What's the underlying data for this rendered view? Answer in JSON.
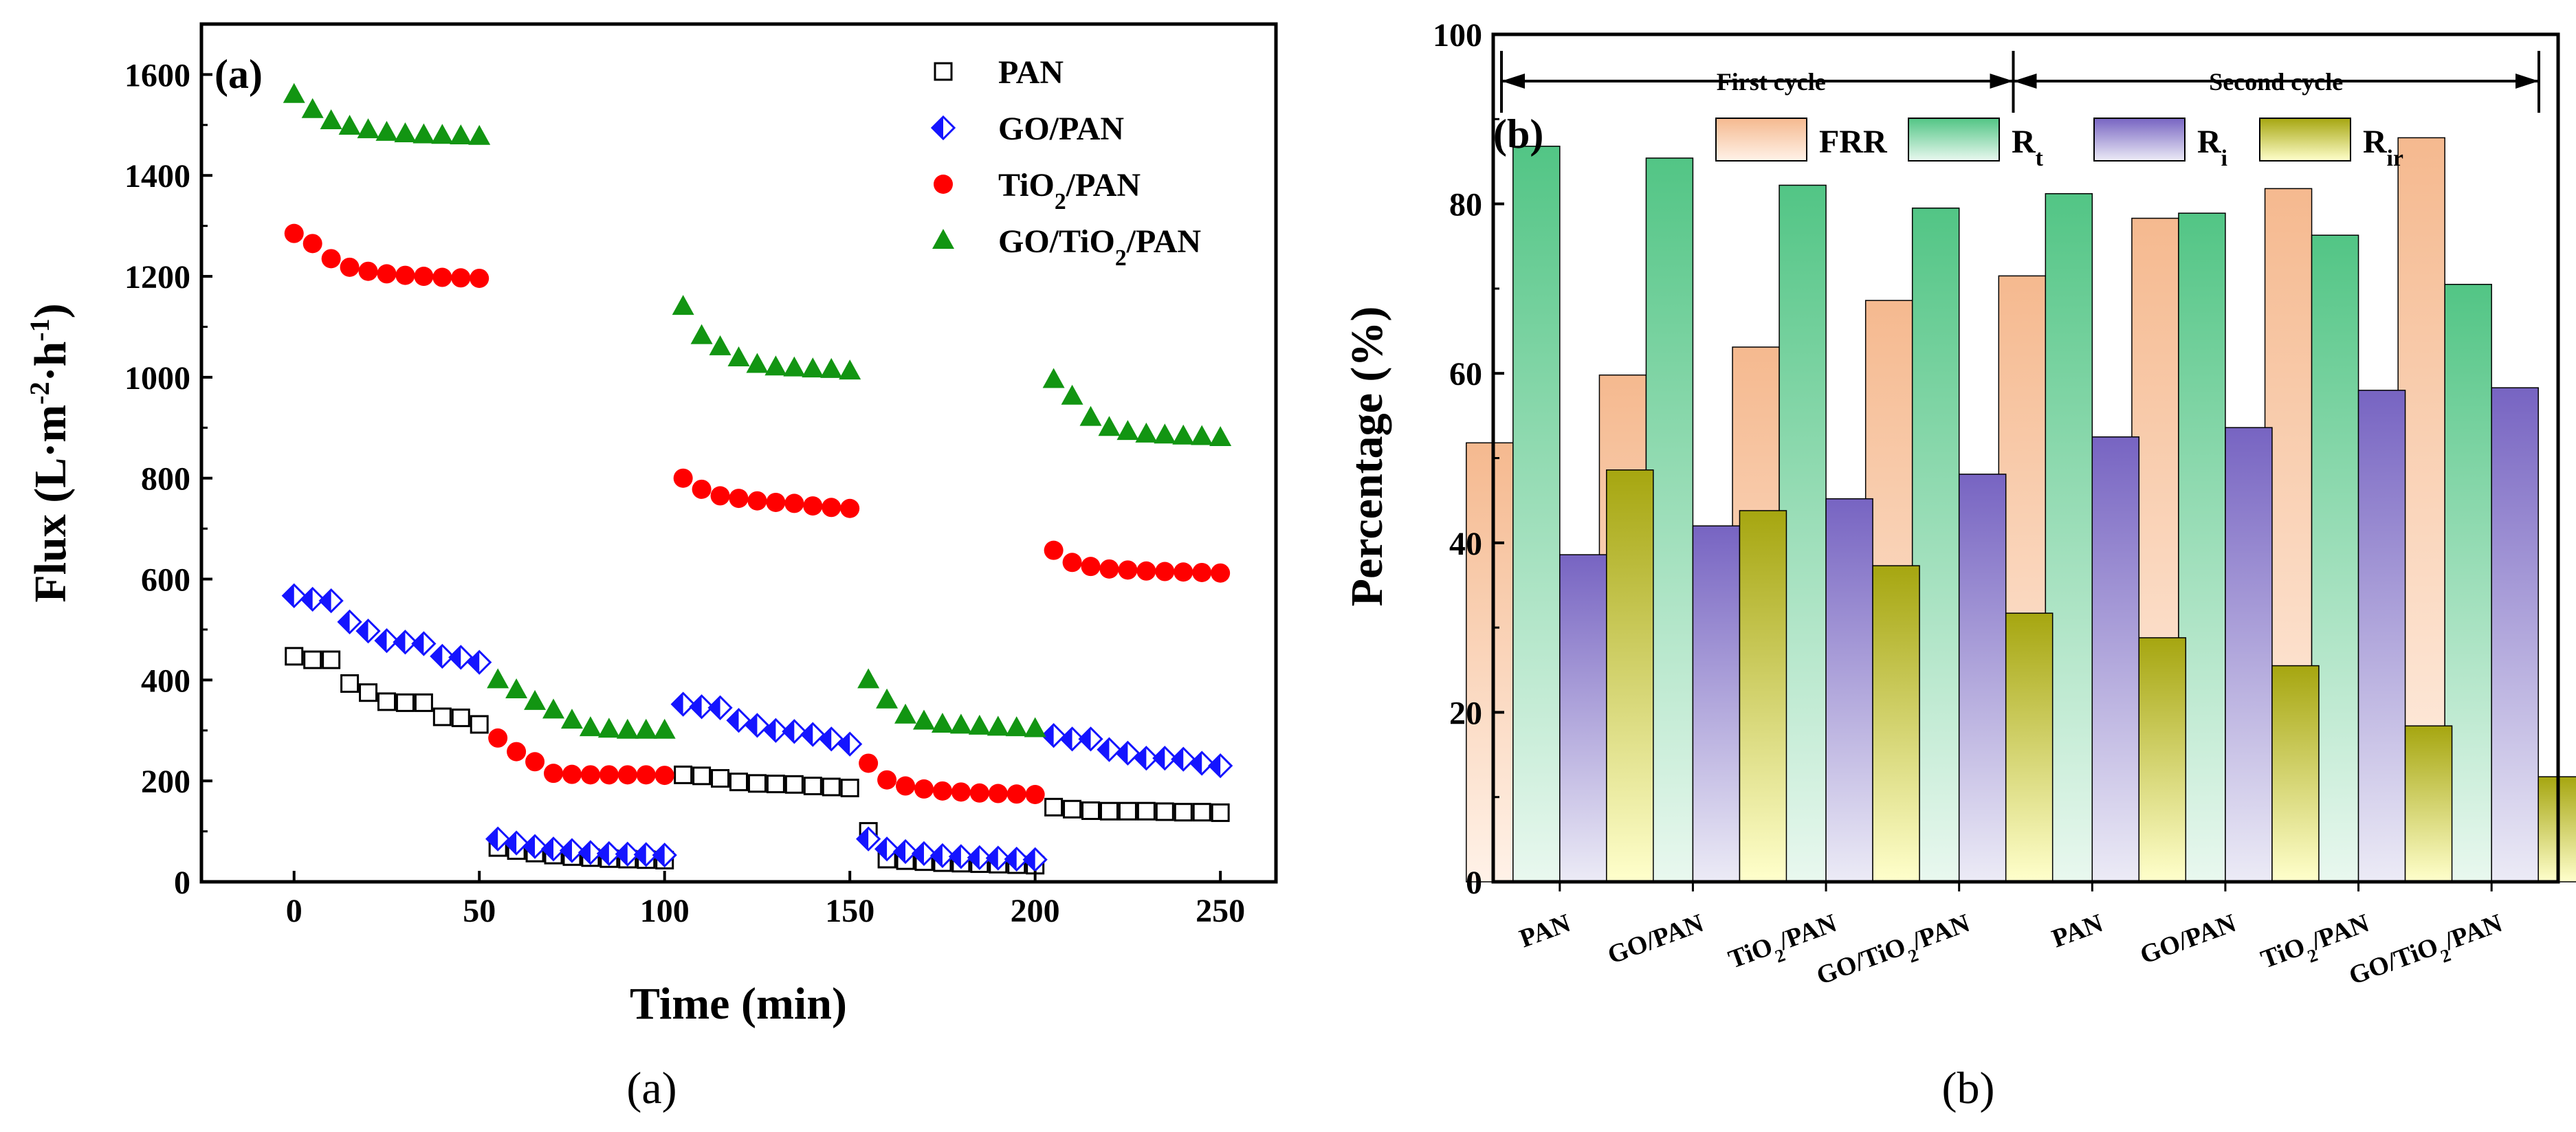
{
  "chart_data": [
    {
      "type": "scatter",
      "panel_label": "(a)",
      "caption": "(a)",
      "xlabel": "Time (min)",
      "ylabel": "Flux (L·m-2·h-1)",
      "xlim": [
        -25,
        265
      ],
      "ylim": [
        0,
        1700
      ],
      "xticks": [
        0,
        50,
        100,
        150,
        200,
        250
      ],
      "yticks": [
        0,
        200,
        400,
        600,
        800,
        1000,
        1200,
        1400,
        1600
      ],
      "legend_position": "top-right",
      "series": [
        {
          "name": "PAN",
          "marker": "square-open",
          "color": "#000000",
          "segments": [
            {
              "x": [
                0,
                5,
                10,
                15,
                20,
                25,
                30,
                35,
                40,
                45,
                50
              ],
              "y": [
                447,
                440,
                440,
                393,
                375,
                357,
                355,
                355,
                327,
                325,
                312
              ]
            },
            {
              "x": [
                55,
                60,
                65,
                70,
                75,
                80,
                85,
                90,
                95,
                100
              ],
              "y": [
                68,
                62,
                57,
                53,
                50,
                48,
                46,
                45,
                44,
                43
              ]
            },
            {
              "x": [
                105,
                110,
                115,
                120,
                125,
                130,
                135,
                140,
                145,
                150
              ],
              "y": [
                212,
                210,
                205,
                198,
                195,
                194,
                193,
                190,
                188,
                186
              ]
            },
            {
              "x": [
                155,
                160,
                165,
                170,
                175,
                180,
                185,
                190,
                195,
                200
              ],
              "y": [
                100,
                45,
                42,
                40,
                38,
                37,
                36,
                35,
                34,
                33
              ]
            },
            {
              "x": [
                205,
                210,
                215,
                220,
                225,
                230,
                235,
                240,
                245,
                250
              ],
              "y": [
                148,
                144,
                141,
                140,
                140,
                140,
                139,
                138,
                138,
                137
              ]
            }
          ]
        },
        {
          "name": "GO/PAN",
          "marker": "diamond-half",
          "color": "#1414ff",
          "segments": [
            {
              "x": [
                0,
                5,
                10,
                15,
                20,
                25,
                30,
                35,
                40,
                45,
                50
              ],
              "y": [
                567,
                560,
                557,
                515,
                497,
                478,
                475,
                472,
                447,
                445,
                435
              ]
            },
            {
              "x": [
                55,
                60,
                65,
                70,
                75,
                80,
                85,
                90,
                95,
                100
              ],
              "y": [
                85,
                77,
                70,
                65,
                62,
                58,
                56,
                55,
                54,
                53
              ]
            },
            {
              "x": [
                105,
                110,
                115,
                120,
                125,
                130,
                135,
                140,
                145,
                150
              ],
              "y": [
                352,
                347,
                345,
                320,
                310,
                300,
                298,
                292,
                283,
                273
              ]
            },
            {
              "x": [
                155,
                160,
                165,
                170,
                175,
                180,
                185,
                190,
                195,
                200
              ],
              "y": [
                85,
                65,
                60,
                56,
                52,
                50,
                48,
                47,
                45,
                44
              ]
            },
            {
              "x": [
                205,
                210,
                215,
                220,
                225,
                230,
                235,
                240,
                245,
                250
              ],
              "y": [
                290,
                283,
                283,
                262,
                255,
                245,
                245,
                243,
                235,
                230
              ]
            }
          ]
        },
        {
          "name": "TiO2/PAN",
          "marker": "circle",
          "color": "#ff0000",
          "segments": [
            {
              "x": [
                0,
                5,
                10,
                15,
                20,
                25,
                30,
                35,
                40,
                45,
                50
              ],
              "y": [
                1285,
                1265,
                1235,
                1218,
                1210,
                1205,
                1202,
                1200,
                1198,
                1197,
                1196
              ]
            },
            {
              "x": [
                55,
                60,
                65,
                70,
                75,
                80,
                85,
                90,
                95,
                100
              ],
              "y": [
                285,
                258,
                238,
                215,
                213,
                212,
                212,
                212,
                212,
                211
              ]
            },
            {
              "x": [
                105,
                110,
                115,
                120,
                125,
                130,
                135,
                140,
                145,
                150
              ],
              "y": [
                800,
                778,
                765,
                760,
                755,
                752,
                750,
                745,
                742,
                740
              ]
            },
            {
              "x": [
                155,
                160,
                165,
                170,
                175,
                180,
                185,
                190,
                195,
                200
              ],
              "y": [
                235,
                202,
                190,
                184,
                180,
                178,
                176,
                175,
                174,
                173
              ]
            },
            {
              "x": [
                205,
                210,
                215,
                220,
                225,
                230,
                235,
                240,
                245,
                250
              ],
              "y": [
                657,
                633,
                625,
                620,
                618,
                616,
                615,
                614,
                613,
                612
              ]
            }
          ]
        },
        {
          "name": "GO/TiO2/PAN",
          "marker": "triangle",
          "color": "#129512",
          "segments": [
            {
              "x": [
                0,
                5,
                10,
                15,
                20,
                25,
                30,
                35,
                40,
                45,
                50
              ],
              "y": [
                1560,
                1530,
                1508,
                1497,
                1490,
                1485,
                1482,
                1480,
                1479,
                1478,
                1477
              ]
            },
            {
              "x": [
                55,
                60,
                65,
                70,
                75,
                80,
                85,
                90,
                95,
                100
              ],
              "y": [
                400,
                380,
                357,
                340,
                320,
                305,
                302,
                300,
                300,
                300
              ]
            },
            {
              "x": [
                105,
                110,
                115,
                120,
                125,
                130,
                135,
                140,
                145,
                150
              ],
              "y": [
                1140,
                1082,
                1060,
                1038,
                1025,
                1020,
                1018,
                1016,
                1015,
                1012
              ]
            },
            {
              "x": [
                155,
                160,
                165,
                170,
                175,
                180,
                185,
                190,
                195,
                200
              ],
              "y": [
                400,
                360,
                330,
                318,
                312,
                310,
                308,
                306,
                305,
                303
              ]
            },
            {
              "x": [
                205,
                210,
                215,
                220,
                225,
                230,
                235,
                240,
                245,
                250
              ],
              "y": [
                995,
                962,
                920,
                900,
                892,
                887,
                885,
                883,
                882,
                880
              ]
            }
          ]
        }
      ]
    },
    {
      "type": "bar",
      "panel_label": "(b)",
      "caption": "(b)",
      "xlabel": "",
      "ylabel": "Percentage (%)",
      "ylim": [
        0,
        100
      ],
      "yticks": [
        0,
        20,
        40,
        60,
        80,
        100
      ],
      "categories": [
        "PAN",
        "GO/PAN",
        "TiO2/PAN",
        "GO/TiO2/PAN",
        "PAN",
        "GO/PAN",
        "TiO2/PAN",
        "GO/TiO2/PAN"
      ],
      "cycles": [
        {
          "label": "First cycle",
          "categories": [
            0,
            3
          ]
        },
        {
          "label": "Second cycle",
          "categories": [
            4,
            7
          ]
        }
      ],
      "legend_position": "top",
      "series": [
        {
          "name": "FRR",
          "color_top": "#f5b98f",
          "color_bottom": "#fff2e8",
          "values": [
            51.8,
            59.8,
            63.1,
            68.6,
            71.5,
            78.3,
            81.8,
            87.8
          ]
        },
        {
          "name": "Rt",
          "color_top": "#52c585",
          "color_bottom": "#e9f8ef",
          "values": [
            86.8,
            85.4,
            82.2,
            79.5,
            81.2,
            78.9,
            76.3,
            70.5
          ]
        },
        {
          "name": "Ri",
          "color_top": "#7764c2",
          "color_bottom": "#ecebf6",
          "values": [
            38.6,
            42.0,
            45.2,
            48.1,
            52.5,
            53.6,
            58.0,
            58.3
          ]
        },
        {
          "name": "Rir",
          "color_top": "#a6a610",
          "color_bottom": "#ffffcc",
          "values": [
            48.6,
            43.8,
            37.3,
            31.7,
            28.8,
            25.5,
            18.4,
            12.4
          ]
        }
      ]
    }
  ]
}
